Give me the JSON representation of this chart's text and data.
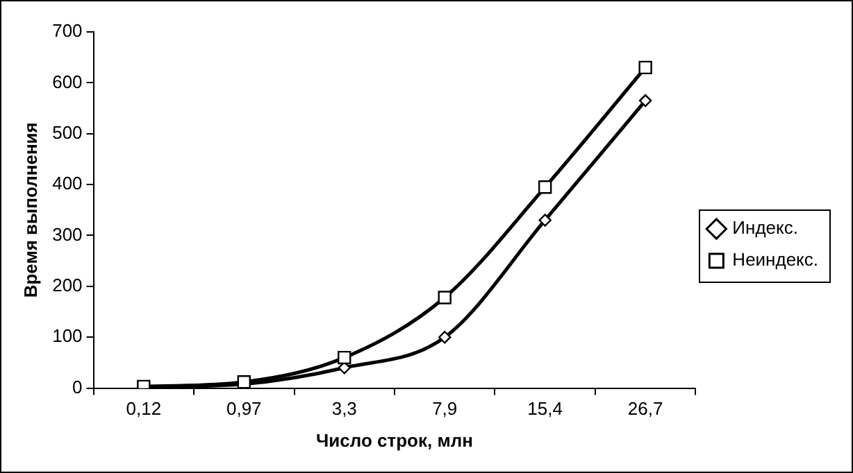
{
  "chart_data": {
    "type": "line",
    "xlabel": "Число строк, млн",
    "ylabel": "Время выполнения",
    "categories": [
      "0,12",
      "0,97",
      "3,3",
      "7,9",
      "15,4",
      "26,7"
    ],
    "series": [
      {
        "name": "Индекс.",
        "color": "#000000",
        "marker": "diamond",
        "values": [
          2,
          8,
          40,
          100,
          330,
          565
        ]
      },
      {
        "name": "Неиндекс.",
        "color": "#000000",
        "marker": "square",
        "values": [
          3,
          12,
          60,
          178,
          395,
          630
        ]
      }
    ],
    "ylim": [
      0,
      700
    ],
    "yticks": [
      0,
      100,
      200,
      300,
      400,
      500,
      600,
      700
    ],
    "grid": false,
    "legend": "right"
  }
}
